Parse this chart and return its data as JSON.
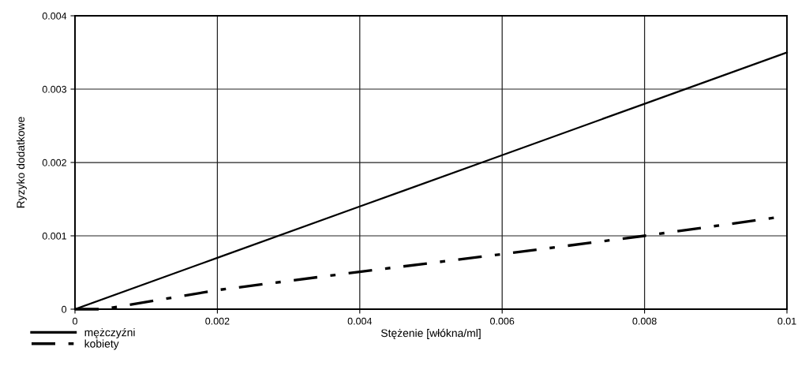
{
  "chart_data": {
    "type": "line",
    "xlabel": "Stężenie [włókna/ml]",
    "ylabel": "Ryzyko dodatkowe",
    "series": [
      {
        "name": "mężczyźni",
        "color": "#000000",
        "line_style": "solid",
        "x": [
          0,
          0.002,
          0.004,
          0.006,
          0.008,
          0.01
        ],
        "values": [
          0,
          0.0007,
          0.0014,
          0.0021,
          0.0028,
          0.0035
        ]
      },
      {
        "name": "kobiety",
        "color": "#000000",
        "line_style": "dashed",
        "x": [
          0,
          0.0004,
          0.002,
          0.004,
          0.006,
          0.008,
          0.01
        ],
        "values": [
          0,
          0,
          0.00026,
          0.00051,
          0.00075,
          0.001,
          0.00127
        ]
      }
    ],
    "xlim": [
      0,
      0.01
    ],
    "xticks": [
      0,
      0.002,
      0.004,
      0.006,
      0.008,
      0.01
    ],
    "ylim": [
      0,
      0.004
    ],
    "yticks": [
      0,
      0.001,
      0.002,
      0.003,
      0.004
    ],
    "grid": true,
    "legend": "bottom left",
    "marker": "none"
  }
}
